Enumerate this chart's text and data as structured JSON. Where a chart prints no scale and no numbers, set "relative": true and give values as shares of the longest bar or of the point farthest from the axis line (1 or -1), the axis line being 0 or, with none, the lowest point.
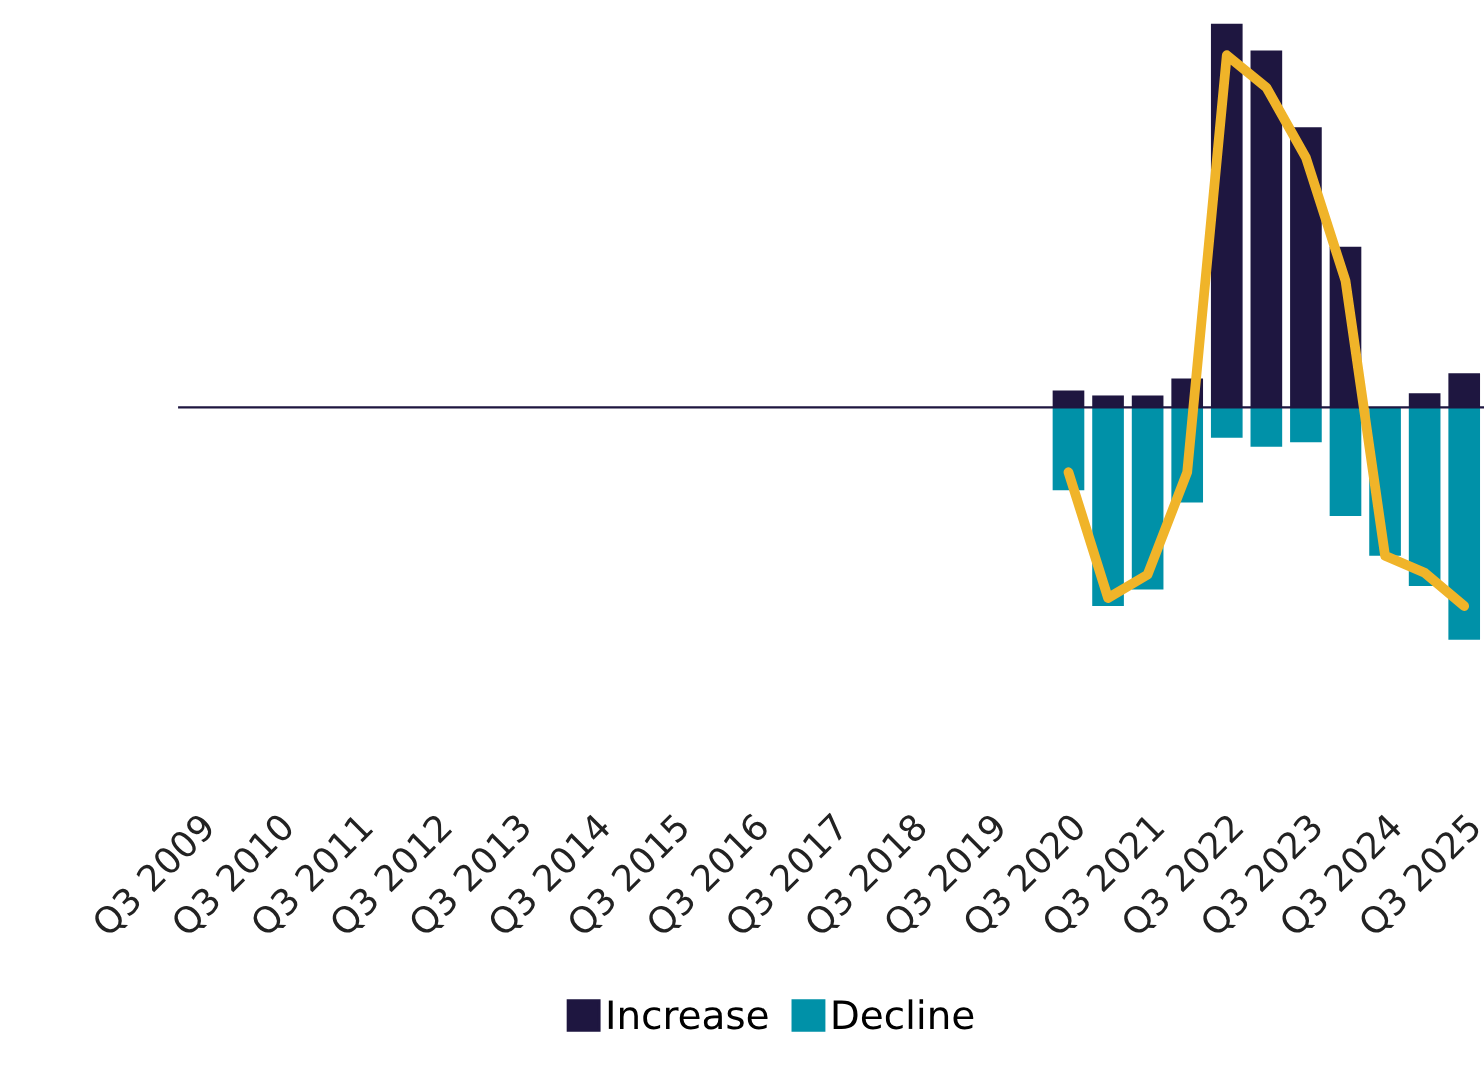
{
  "chart_data": {
    "type": "bar",
    "relative": true,
    "legend": "bottom",
    "grid": false,
    "categories": [
      "Q3 2009",
      null,
      "Q3 2010",
      null,
      "Q3 2011",
      null,
      "Q3 2012",
      null,
      "Q3 2013",
      null,
      "Q3 2014",
      null,
      "Q3 2015",
      null,
      "Q3 2016",
      null,
      "Q3 2017",
      null,
      "Q3 2018",
      null,
      "Q3 2019",
      null,
      "Q3 2020",
      null,
      "Q3 2021",
      null,
      "Q3 2022",
      null,
      "Q3 2023",
      null,
      "Q3 2024",
      null,
      "Q3 2025"
    ],
    "series": [
      {
        "name": "Increase",
        "color": "#1e1640",
        "values": [
          null,
          null,
          null,
          null,
          null,
          null,
          null,
          null,
          null,
          null,
          null,
          null,
          null,
          null,
          null,
          null,
          null,
          null,
          null,
          null,
          null,
          null,
          0.044,
          0.031,
          0.031,
          0.075,
          1.0,
          0.93,
          0.73,
          0.419,
          0,
          0.037,
          0.089
        ]
      },
      {
        "name": "Decline",
        "color": "#0091a8",
        "values": [
          null,
          null,
          null,
          null,
          null,
          null,
          null,
          null,
          null,
          null,
          null,
          null,
          null,
          null,
          null,
          null,
          null,
          null,
          null,
          null,
          null,
          null,
          -0.216,
          -0.518,
          -0.475,
          -0.248,
          -0.079,
          -0.103,
          -0.091,
          -0.283,
          -0.387,
          -0.466,
          -0.606
        ]
      },
      {
        "type": "line",
        "color": "#f0b429",
        "line_style": "solid",
        "marker": "none",
        "values": [
          null,
          null,
          null,
          null,
          null,
          null,
          null,
          null,
          null,
          null,
          null,
          null,
          null,
          null,
          null,
          null,
          null,
          null,
          null,
          null,
          null,
          null,
          -0.169,
          -0.497,
          -0.436,
          -0.169,
          0.918,
          0.834,
          0.651,
          0.33,
          -0.387,
          -0.431,
          -0.518
        ]
      }
    ]
  }
}
